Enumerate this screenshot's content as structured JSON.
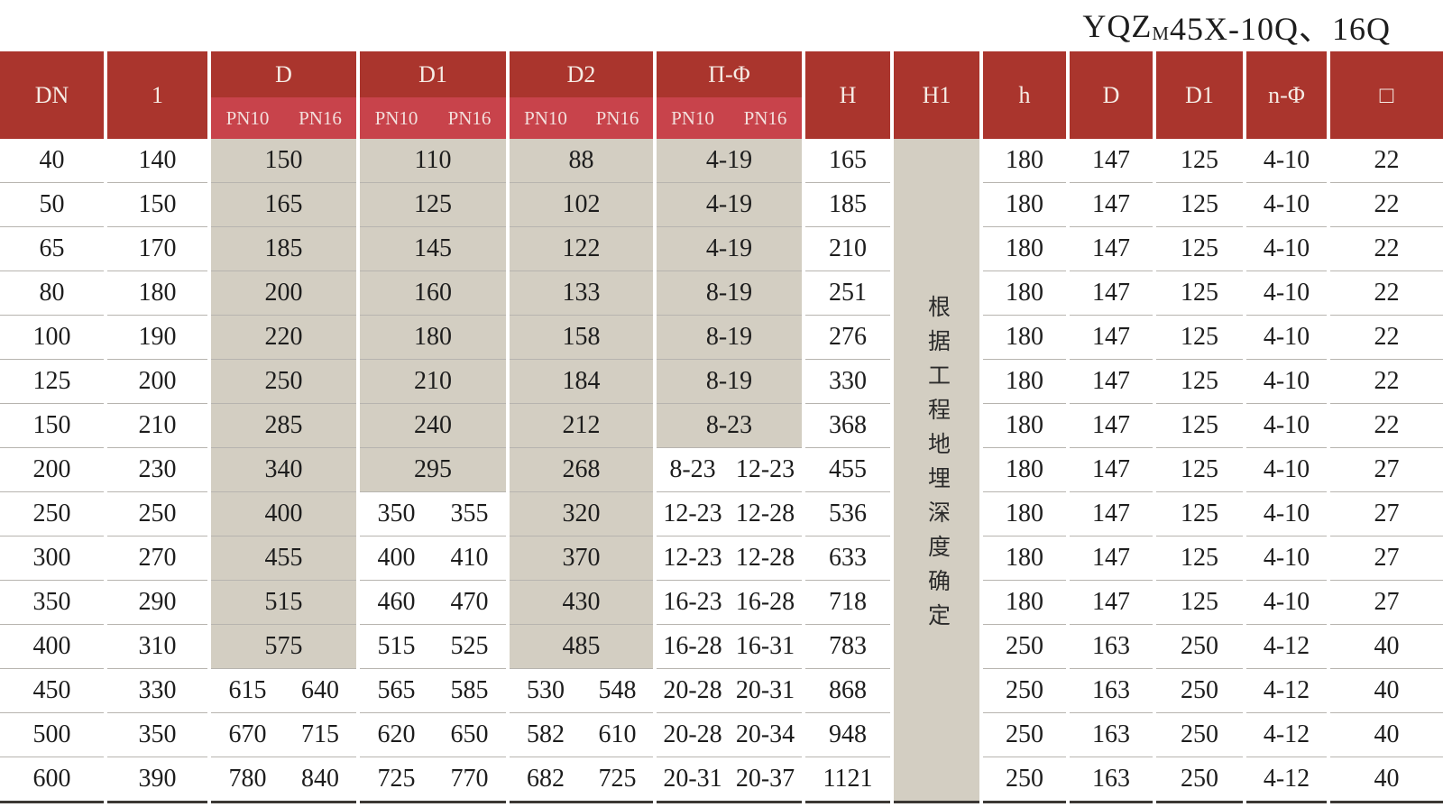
{
  "title": {
    "prefix": "YQZ",
    "subscript": "M",
    "suffix": "45X-10Q、16Q"
  },
  "colors": {
    "header_dark": "#aa352d",
    "header_light": "#c8434b",
    "merged_cell_beige": "#d3cec2",
    "row_line": "#b7b4af",
    "bottom_border": "#3b3834",
    "header_text": "#f6ece5",
    "body_text": "#1d1d1d"
  },
  "table": {
    "headers": {
      "dn": "DN",
      "l": "1",
      "d": "D",
      "d1": "D1",
      "d2": "D2",
      "holes": "Π-Φ",
      "pn10": "PN10",
      "pn16": "PN16",
      "h_cap": "H",
      "h1": "H1",
      "h_small": "h",
      "d_right": "D",
      "d1_right": "D1",
      "n_phi": "n-Φ",
      "square": "□"
    },
    "h1_note": "根据工程地埋深度确定",
    "rows": [
      {
        "dn": "40",
        "l": "140",
        "D": "150",
        "D1": "110",
        "D2": "88",
        "phi": "4-19",
        "H": "165",
        "h": "180",
        "Dr": "147",
        "D1r": "125",
        "nphi": "4-10",
        "sq": "22"
      },
      {
        "dn": "50",
        "l": "150",
        "D": "165",
        "D1": "125",
        "D2": "102",
        "phi": "4-19",
        "H": "185",
        "h": "180",
        "Dr": "147",
        "D1r": "125",
        "nphi": "4-10",
        "sq": "22"
      },
      {
        "dn": "65",
        "l": "170",
        "D": "185",
        "D1": "145",
        "D2": "122",
        "phi": "4-19",
        "H": "210",
        "h": "180",
        "Dr": "147",
        "D1r": "125",
        "nphi": "4-10",
        "sq": "22"
      },
      {
        "dn": "80",
        "l": "180",
        "D": "200",
        "D1": "160",
        "D2": "133",
        "phi": "8-19",
        "H": "251",
        "h": "180",
        "Dr": "147",
        "D1r": "125",
        "nphi": "4-10",
        "sq": "22"
      },
      {
        "dn": "100",
        "l": "190",
        "D": "220",
        "D1": "180",
        "D2": "158",
        "phi": "8-19",
        "H": "276",
        "h": "180",
        "Dr": "147",
        "D1r": "125",
        "nphi": "4-10",
        "sq": "22"
      },
      {
        "dn": "125",
        "l": "200",
        "D": "250",
        "D1": "210",
        "D2": "184",
        "phi": "8-19",
        "H": "330",
        "h": "180",
        "Dr": "147",
        "D1r": "125",
        "nphi": "4-10",
        "sq": "22"
      },
      {
        "dn": "150",
        "l": "210",
        "D": "285",
        "D1": "240",
        "D2": "212",
        "phi": "8-23",
        "H": "368",
        "h": "180",
        "Dr": "147",
        "D1r": "125",
        "nphi": "4-10",
        "sq": "22"
      },
      {
        "dn": "200",
        "l": "230",
        "D": "340",
        "D1": "295",
        "D2": "268",
        "phi": [
          "8-23",
          "12-23"
        ],
        "H": "455",
        "h": "180",
        "Dr": "147",
        "D1r": "125",
        "nphi": "4-10",
        "sq": "27"
      },
      {
        "dn": "250",
        "l": "250",
        "D": "400",
        "D1": [
          "350",
          "355"
        ],
        "D2": "320",
        "phi": [
          "12-23",
          "12-28"
        ],
        "H": "536",
        "h": "180",
        "Dr": "147",
        "D1r": "125",
        "nphi": "4-10",
        "sq": "27"
      },
      {
        "dn": "300",
        "l": "270",
        "D": "455",
        "D1": [
          "400",
          "410"
        ],
        "D2": "370",
        "phi": [
          "12-23",
          "12-28"
        ],
        "H": "633",
        "h": "180",
        "Dr": "147",
        "D1r": "125",
        "nphi": "4-10",
        "sq": "27"
      },
      {
        "dn": "350",
        "l": "290",
        "D": "515",
        "D1": [
          "460",
          "470"
        ],
        "D2": "430",
        "phi": [
          "16-23",
          "16-28"
        ],
        "H": "718",
        "h": "180",
        "Dr": "147",
        "D1r": "125",
        "nphi": "4-10",
        "sq": "27"
      },
      {
        "dn": "400",
        "l": "310",
        "D": "575",
        "D1": [
          "515",
          "525"
        ],
        "D2": "485",
        "phi": [
          "16-28",
          "16-31"
        ],
        "H": "783",
        "h": "250",
        "Dr": "163",
        "D1r": "250",
        "nphi": "4-12",
        "sq": "40"
      },
      {
        "dn": "450",
        "l": "330",
        "D": [
          "615",
          "640"
        ],
        "D1": [
          "565",
          "585"
        ],
        "D2": [
          "530",
          "548"
        ],
        "phi": [
          "20-28",
          "20-31"
        ],
        "H": "868",
        "h": "250",
        "Dr": "163",
        "D1r": "250",
        "nphi": "4-12",
        "sq": "40"
      },
      {
        "dn": "500",
        "l": "350",
        "D": [
          "670",
          "715"
        ],
        "D1": [
          "620",
          "650"
        ],
        "D2": [
          "582",
          "610"
        ],
        "phi": [
          "20-28",
          "20-34"
        ],
        "H": "948",
        "h": "250",
        "Dr": "163",
        "D1r": "250",
        "nphi": "4-12",
        "sq": "40"
      },
      {
        "dn": "600",
        "l": "390",
        "D": [
          "780",
          "840"
        ],
        "D1": [
          "725",
          "770"
        ],
        "D2": [
          "682",
          "725"
        ],
        "phi": [
          "20-31",
          "20-37"
        ],
        "H": "1121",
        "h": "250",
        "Dr": "163",
        "D1r": "250",
        "nphi": "4-12",
        "sq": "40"
      }
    ]
  }
}
